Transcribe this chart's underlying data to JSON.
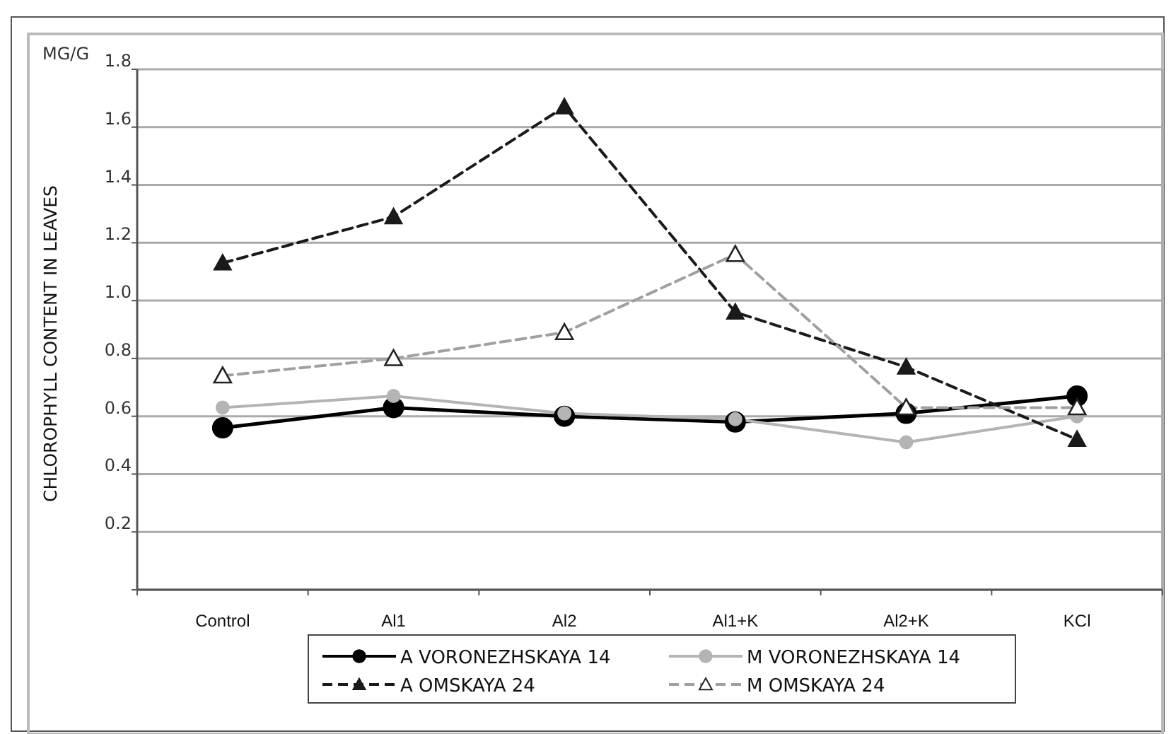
{
  "chart_data": {
    "type": "line",
    "ylabel": "CHLOROPHYLL CONTENT IN LEAVES",
    "annotations": [
      "MG/G"
    ],
    "categories": [
      "Control",
      "Al1",
      "Al2",
      "Al1+K",
      "Al2+K",
      "KCl"
    ],
    "ylim": [
      0,
      1.8
    ],
    "yticks": [
      {
        "value": 0,
        "label": null
      },
      0.2,
      0.4,
      0.6,
      0.8,
      {
        "value": 1,
        "label": "1.0"
      },
      1.2,
      1.4,
      1.6,
      1.8
    ],
    "grid": "y",
    "legend": "bottom",
    "series": [
      {
        "name": "A VORONEZHSKAYA 14",
        "color": "#000000",
        "marker": "circle",
        "line_style": "solid",
        "values": [
          0.56,
          0.63,
          0.6,
          0.58,
          0.61,
          0.67
        ]
      },
      {
        "name": "M VORONEZHSKAYA 14",
        "color": "#b4b4b4",
        "marker": "circle",
        "line_style": "solid",
        "values": [
          0.63,
          0.67,
          0.61,
          0.59,
          0.51,
          0.6
        ]
      },
      {
        "name": "A OMSKAYA 24",
        "color": "#1a1a1a",
        "marker": "triangle",
        "line_style": "dashed",
        "values": [
          1.13,
          1.29,
          1.67,
          0.96,
          0.77,
          0.52
        ]
      },
      {
        "name": "M OMSKAYA 24",
        "color": "#a0a0a0",
        "marker": "triangle-open",
        "line_style": "dashed",
        "values": [
          0.74,
          0.8,
          0.89,
          1.16,
          0.63,
          0.63
        ]
      }
    ]
  }
}
